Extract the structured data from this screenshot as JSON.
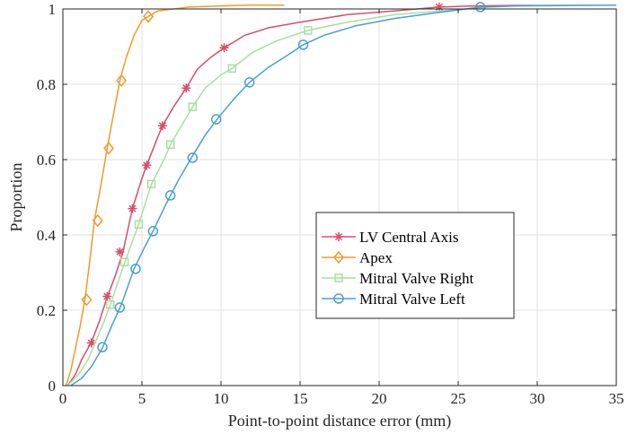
{
  "chart_data": {
    "type": "line",
    "title": "",
    "xlabel": "Point-to-point distance error (mm)",
    "ylabel": "Proportion",
    "xlim": [
      0,
      35
    ],
    "ylim": [
      0,
      1
    ],
    "xticks": [
      0,
      5,
      10,
      15,
      20,
      25,
      30,
      35
    ],
    "yticks": [
      0,
      0.2,
      0.4,
      0.6,
      0.8,
      1
    ],
    "xtick_labels": [
      "0",
      "5",
      "10",
      "15",
      "20",
      "25",
      "30",
      "35"
    ],
    "ytick_labels": [
      "0",
      "0.2",
      "0.4",
      "0.6",
      "0.8",
      "1"
    ],
    "grid": true,
    "legend_position": "center-right",
    "series": [
      {
        "name": "LV Central Axis",
        "color": "#d94d6c",
        "marker": "asterisk",
        "x": [
          0.3,
          0.8,
          1.2,
          1.8,
          2.3,
          2.8,
          3.3,
          3.8,
          4.4,
          5.0,
          5.3,
          6.0,
          6.3,
          7.0,
          7.8,
          8.5,
          9.3,
          10.2,
          11.5,
          13.0,
          15.0,
          18.0,
          21.0,
          23.8,
          26.0,
          30.0,
          35.0
        ],
        "y": [
          0.0,
          0.03,
          0.07,
          0.115,
          0.17,
          0.235,
          0.29,
          0.355,
          0.47,
          0.55,
          0.585,
          0.66,
          0.69,
          0.74,
          0.79,
          0.84,
          0.87,
          0.897,
          0.93,
          0.95,
          0.965,
          0.985,
          0.995,
          1.005,
          1.008,
          1.01,
          1.01
        ],
        "marker_x": [
          1.8,
          2.8,
          3.6,
          4.4,
          5.3,
          6.3,
          7.8,
          10.2,
          23.8
        ],
        "marker_y": [
          0.113,
          0.237,
          0.355,
          0.47,
          0.585,
          0.69,
          0.79,
          0.897,
          1.005
        ]
      },
      {
        "name": "Apex",
        "color": "#f39a2b",
        "marker": "diamond",
        "x": [
          0.2,
          0.5,
          0.8,
          1.1,
          1.4,
          1.7,
          2.0,
          2.4,
          2.8,
          3.2,
          3.6,
          4.0,
          4.5,
          5.0,
          5.4,
          6.0,
          7.0,
          8.0,
          10.0,
          12.0,
          14.0
        ],
        "y": [
          0.0,
          0.04,
          0.1,
          0.16,
          0.23,
          0.33,
          0.44,
          0.53,
          0.63,
          0.72,
          0.81,
          0.87,
          0.93,
          0.97,
          0.98,
          0.995,
          1.0,
          1.005,
          1.008,
          1.01,
          1.01
        ],
        "marker_x": [
          1.5,
          2.2,
          2.9,
          3.7,
          5.4
        ],
        "marker_y": [
          0.228,
          0.438,
          0.63,
          0.81,
          0.98
        ]
      },
      {
        "name": "Mitral Valve Right",
        "color": "#a6e0a0",
        "marker": "square",
        "x": [
          0.3,
          1.0,
          1.6,
          2.1,
          2.6,
          3.0,
          3.6,
          4.2,
          4.8,
          5.6,
          6.4,
          6.8,
          7.5,
          8.2,
          9.0,
          10.0,
          10.7,
          12.0,
          13.5,
          15.5,
          18.0,
          21.0,
          24.0,
          27.0,
          30.0,
          35.0
        ],
        "y": [
          0.0,
          0.03,
          0.07,
          0.12,
          0.17,
          0.215,
          0.29,
          0.36,
          0.43,
          0.535,
          0.6,
          0.64,
          0.69,
          0.74,
          0.79,
          0.825,
          0.842,
          0.885,
          0.915,
          0.943,
          0.965,
          0.985,
          0.995,
          1.005,
          1.01,
          1.01
        ],
        "marker_x": [
          3.0,
          3.9,
          4.8,
          5.6,
          6.8,
          8.2,
          10.7,
          15.5
        ],
        "marker_y": [
          0.215,
          0.328,
          0.428,
          0.535,
          0.64,
          0.74,
          0.842,
          0.943
        ]
      },
      {
        "name": "Mitral Valve Left",
        "color": "#4a9fd4",
        "marker": "circle",
        "x": [
          0.5,
          1.2,
          1.8,
          2.5,
          3.1,
          3.7,
          4.5,
          5.2,
          5.7,
          6.5,
          7.3,
          8.2,
          9.0,
          9.8,
          10.8,
          11.8,
          13.0,
          14.5,
          15.2,
          16.5,
          18.5,
          21.0,
          24.0,
          26.4,
          28.5,
          35.0
        ],
        "y": [
          0.0,
          0.02,
          0.05,
          0.1,
          0.16,
          0.215,
          0.31,
          0.37,
          0.41,
          0.48,
          0.545,
          0.61,
          0.665,
          0.71,
          0.76,
          0.805,
          0.845,
          0.885,
          0.905,
          0.93,
          0.955,
          0.975,
          0.992,
          1.005,
          1.008,
          1.01
        ],
        "marker_x": [
          2.5,
          3.6,
          4.6,
          5.7,
          6.8,
          8.2,
          9.7,
          11.8,
          15.2,
          26.4
        ],
        "marker_y": [
          0.102,
          0.207,
          0.31,
          0.41,
          0.505,
          0.605,
          0.707,
          0.805,
          0.905,
          1.005
        ]
      }
    ]
  }
}
